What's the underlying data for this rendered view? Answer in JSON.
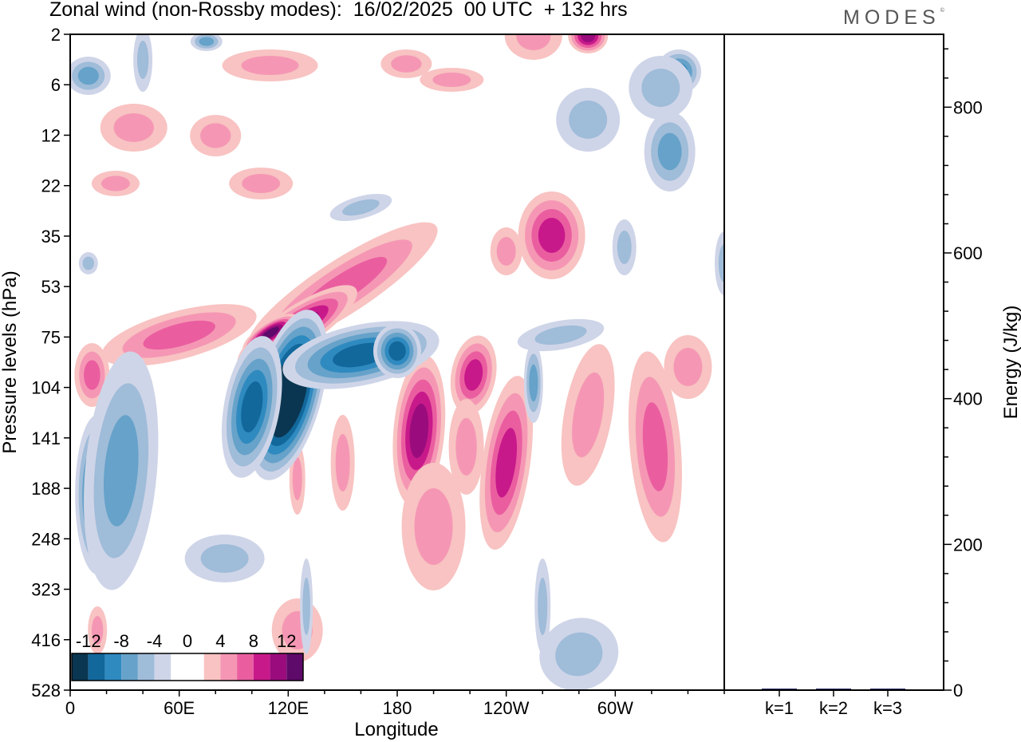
{
  "header": {
    "title": "Zonal wind (non-Rossby modes):  16/02/2025  00 UTC  + 132 hrs",
    "brand": "MODES",
    "brand_mark": "©"
  },
  "colors": {
    "neg": [
      "#0a3651",
      "#12689b",
      "#2f8ac0",
      "#66a2c9",
      "#9fbcd9",
      "#cfd5e8"
    ],
    "pos": [
      "#f8c3c2",
      "#f597b4",
      "#ea5ea0",
      "#c8198a",
      "#9a0c7d",
      "#5e0a6a"
    ]
  },
  "chart_data": [
    {
      "type": "heatmap",
      "title": "Zonal wind (non-Rossby modes):  16/02/2025  00 UTC  + 132 hrs",
      "xlabel": "Longitude",
      "ylabel": "Pressure levels (hPa)",
      "x_ticks": [
        "0",
        "60E",
        "120E",
        "180",
        "120W",
        "60W"
      ],
      "x_tick_values": [
        0,
        60,
        120,
        180,
        240,
        300
      ],
      "x_range": [
        0,
        360
      ],
      "y_ticks": [
        "2",
        "6",
        "12",
        "22",
        "35",
        "53",
        "75",
        "104",
        "141",
        "188",
        "248",
        "323",
        "416",
        "528"
      ],
      "colorbar": {
        "labels": [
          "-12",
          "-8",
          "-4",
          "0",
          "4",
          "8",
          "12"
        ],
        "levels": [
          -14,
          -12,
          -10,
          -8,
          -6,
          -4,
          -2,
          2,
          4,
          6,
          8,
          10,
          12,
          14
        ]
      },
      "features": [
        {
          "lon": 102,
          "lev": "125",
          "value": -15
        },
        {
          "lon": 112,
          "lev": "104",
          "value": -12
        },
        {
          "lon": 140,
          "lev": "95",
          "value": -9
        },
        {
          "lon": 175,
          "lev": "90",
          "value": -10
        },
        {
          "lon": 15,
          "lev": "170",
          "value": -9
        },
        {
          "lon": 110,
          "lev": "75",
          "value": 11
        },
        {
          "lon": 90,
          "lev": "90",
          "value": 9
        },
        {
          "lon": 20,
          "lev": "90",
          "value": 7
        },
        {
          "lon": 190,
          "lev": "141",
          "value": 10
        },
        {
          "lon": 222,
          "lev": "95",
          "value": 9
        },
        {
          "lon": 255,
          "lev": "110",
          "value": -6
        },
        {
          "lon": 333,
          "lev": "200",
          "value": 7
        },
        {
          "lon": 315,
          "lev": "5",
          "value": -8
        },
        {
          "lon": 285,
          "lev": "3",
          "value": 9
        },
        {
          "lon": 258,
          "lev": "33",
          "value": 7
        }
      ]
    },
    {
      "type": "bar",
      "categories": [
        "k=1",
        "k=2",
        "k=3"
      ],
      "values": [
        1,
        0.5,
        0.5
      ],
      "ylabel": "Energy (J/kg)",
      "ylim": [
        0,
        900
      ],
      "y_ticks": [
        "0",
        "200",
        "400",
        "600",
        "800"
      ],
      "y_tick_values": [
        0,
        200,
        400,
        600,
        800
      ]
    }
  ]
}
